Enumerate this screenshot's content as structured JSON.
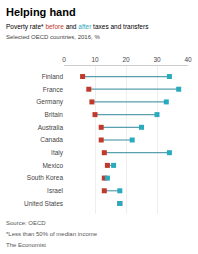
{
  "chart_data": {
    "type": "dumbbell",
    "title": "Helping hand",
    "subtitle": "Poverty rate* before and after taxes and transfers",
    "annotations": [
      "Selected OECD countries, 2016, %",
      "Source: OECD",
      "*Less than 50% of median income",
      "The Economist"
    ],
    "orientation": "horizontal",
    "categories": [
      "Finland",
      "France",
      "Germany",
      "Britain",
      "Australia",
      "Canada",
      "Italy",
      "Mexico",
      "South Korea",
      "Israel",
      "United States"
    ],
    "series": [
      {
        "name": "before",
        "color": "#c0392b",
        "marker": "square",
        "values": [
          6,
          8,
          9,
          10,
          12,
          12,
          13,
          14,
          13,
          13,
          18
        ]
      },
      {
        "name": "after",
        "color": "#28aabf",
        "marker": "square",
        "values": [
          34,
          37,
          33,
          30,
          25,
          22,
          34,
          16,
          14,
          18,
          18
        ]
      }
    ],
    "color": "#5a9faf",
    "xlim": [
      0,
      40
    ],
    "xticks": [
      0,
      10,
      20,
      30,
      40
    ],
    "grid": true
  }
}
